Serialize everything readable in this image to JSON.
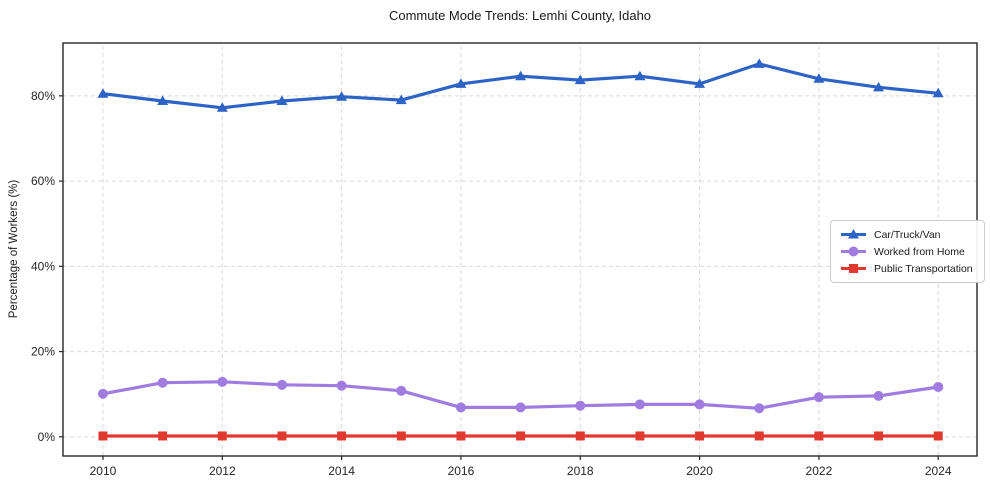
{
  "chart_data": {
    "type": "line",
    "title": "Commute Mode Trends: Lemhi County, Idaho",
    "xlabel": "",
    "ylabel": "Percentage of Workers (%)",
    "x": [
      2010,
      2011,
      2012,
      2013,
      2014,
      2015,
      2016,
      2017,
      2018,
      2019,
      2020,
      2021,
      2022,
      2023,
      2024
    ],
    "series": [
      {
        "name": "Car/Truck/Van",
        "color": "#2d63c5",
        "marker": "triangle",
        "values": [
          80.5,
          78.8,
          77.2,
          78.8,
          79.8,
          79.0,
          82.8,
          84.6,
          83.7,
          84.6,
          82.8,
          87.5,
          84.0,
          82.0,
          80.6
        ]
      },
      {
        "name": "Worked from Home",
        "color": "#a07ce0",
        "marker": "circle",
        "values": [
          10.1,
          12.7,
          12.9,
          12.2,
          12.0,
          10.8,
          6.9,
          6.9,
          7.3,
          7.6,
          7.6,
          6.7,
          9.3,
          9.6,
          11.7
        ]
      },
      {
        "name": "Public Transportation",
        "color": "#e03a30",
        "marker": "square",
        "values": [
          0.2,
          0.2,
          0.2,
          0.2,
          0.2,
          0.2,
          0.2,
          0.2,
          0.2,
          0.2,
          0.2,
          0.2,
          0.2,
          0.2,
          0.2
        ]
      }
    ],
    "xticks": {
      "values": [
        2010,
        2012,
        2014,
        2016,
        2018,
        2020,
        2022,
        2024
      ],
      "labels": [
        "2010",
        "2012",
        "2014",
        "2016",
        "2018",
        "2020",
        "2022",
        "2024"
      ]
    },
    "yticks": {
      "values": [
        0,
        20,
        40,
        60,
        80
      ],
      "labels": [
        "0%",
        "20%",
        "40%",
        "60%",
        "80%"
      ]
    },
    "x_range": [
      2009.33,
      2024.65
    ],
    "y_range": [
      -4.5,
      92.4
    ],
    "grid": true,
    "legend_position": "center-right",
    "colors": {
      "grid": "#d9d9d9",
      "spine": "#262626",
      "tick_text": "#262626"
    }
  }
}
